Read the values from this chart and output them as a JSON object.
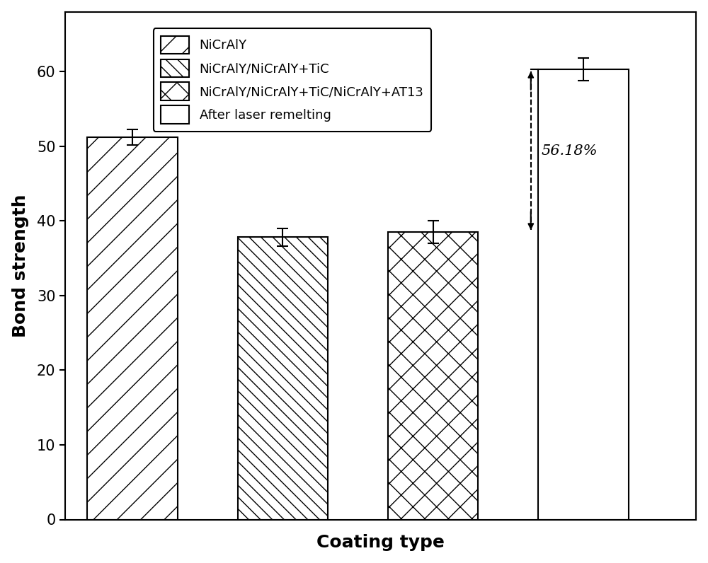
{
  "categories": [
    "NiCrAlY",
    "NiCrAlY/NiCrAlY+TiC",
    "NiCrAlY/NiCrAlY+TiC/NiCrAlY+AT13",
    "After laser remelting"
  ],
  "values": [
    51.2,
    37.8,
    38.5,
    60.3
  ],
  "errors": [
    1.0,
    1.2,
    1.5,
    1.5
  ],
  "ylabel": "Bond strength",
  "xlabel": "Coating type",
  "ylim": [
    0,
    68
  ],
  "yticks": [
    0,
    10,
    20,
    30,
    40,
    50,
    60
  ],
  "annotation_text": "56.18%",
  "legend_labels": [
    "NiCrAlY",
    "NiCrAlY/NiCrAlY+TiC",
    "NiCrAlY/NiCrAlY+TiC/NiCrAlY+AT13",
    "After laser remelting"
  ],
  "hatch_patterns": [
    "/",
    "\\\\",
    "x",
    "#"
  ],
  "bar_width": 0.6,
  "face_color": "white",
  "edge_color": "black",
  "label_fontsize": 18,
  "tick_fontsize": 15,
  "legend_fontsize": 13,
  "annotation_fontsize": 15
}
